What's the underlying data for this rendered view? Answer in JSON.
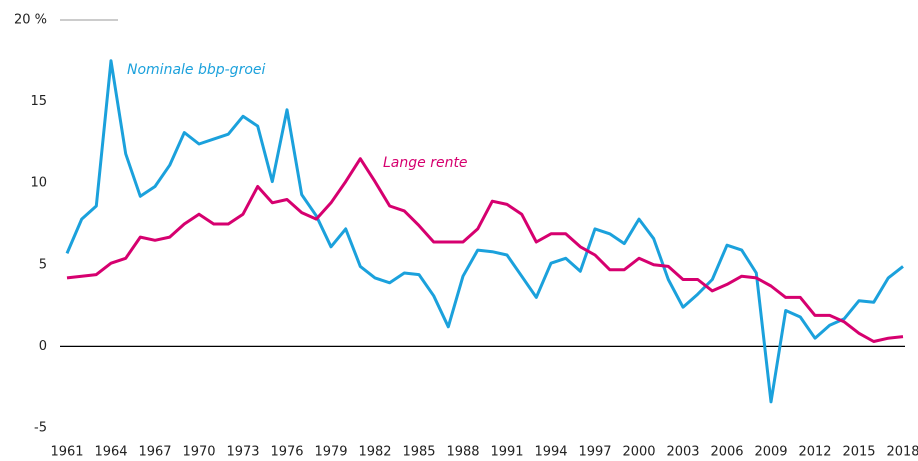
{
  "chart_data": {
    "type": "line",
    "categories": [
      "1961",
      null,
      null,
      "1964",
      null,
      null,
      "1967",
      null,
      null,
      "1970",
      null,
      null,
      "1973",
      null,
      null,
      "1976",
      null,
      null,
      "1979",
      null,
      null,
      "1982",
      null,
      null,
      "1985",
      null,
      null,
      "1988",
      null,
      null,
      "1991",
      null,
      null,
      "1994",
      null,
      null,
      "1997",
      null,
      null,
      "2000",
      null,
      null,
      "2003",
      null,
      null,
      "2006",
      null,
      null,
      "2009",
      null,
      null,
      "2012",
      null,
      null,
      "2015",
      null,
      null,
      "2018"
    ],
    "series": [
      {
        "name": "Nominale bbp-groei",
        "color": "#1ba1dc",
        "values": [
          5.7,
          7.8,
          8.6,
          17.5,
          11.8,
          9.2,
          9.8,
          11.1,
          13.1,
          12.4,
          12.7,
          13.0,
          14.1,
          13.5,
          10.1,
          14.5,
          9.3,
          8.0,
          6.1,
          7.2,
          4.9,
          4.2,
          3.9,
          4.5,
          4.4,
          3.1,
          1.2,
          4.3,
          5.9,
          5.8,
          5.6,
          4.3,
          3.0,
          5.1,
          5.4,
          4.6,
          7.2,
          6.9,
          6.3,
          7.8,
          6.6,
          4.1,
          2.4,
          3.2,
          4.1,
          6.2,
          5.9,
          4.5,
          -3.4,
          2.2,
          1.8,
          0.5,
          1.3,
          1.7,
          2.8,
          2.7,
          4.2,
          4.9
        ]
      },
      {
        "name": "Lange rente",
        "color": "#d6006f",
        "values": [
          4.2,
          4.3,
          4.4,
          5.1,
          5.4,
          6.7,
          6.5,
          6.7,
          7.5,
          8.1,
          7.5,
          7.5,
          8.1,
          9.8,
          8.8,
          9.0,
          8.2,
          7.8,
          8.8,
          10.1,
          11.5,
          10.1,
          8.6,
          8.3,
          7.4,
          6.4,
          6.4,
          6.4,
          7.2,
          8.9,
          8.7,
          8.1,
          6.4,
          6.9,
          6.9,
          6.1,
          5.6,
          4.7,
          4.7,
          5.4,
          5.0,
          4.9,
          4.1,
          4.1,
          3.4,
          3.8,
          4.3,
          4.2,
          3.7,
          3.0,
          3.0,
          1.9,
          1.9,
          1.5,
          0.8,
          0.3,
          0.5,
          0.6
        ]
      }
    ],
    "ylim": [
      -5,
      20
    ],
    "yticks": [
      -5,
      0,
      5,
      10,
      15,
      {
        "value": 20,
        "label": "20 %"
      }
    ],
    "grid": false
  }
}
